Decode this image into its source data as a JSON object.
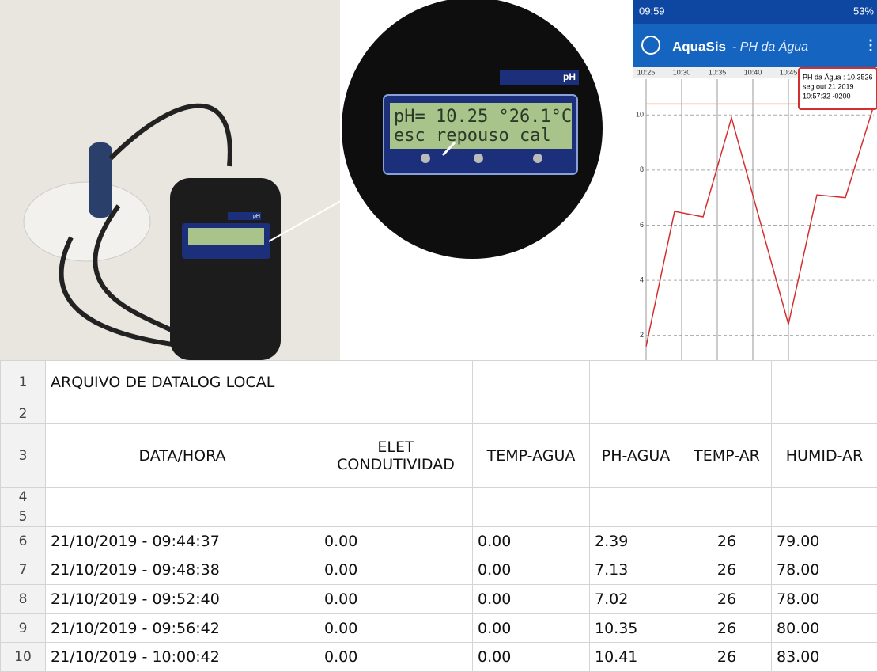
{
  "photo": {
    "device_label": "pH",
    "lcd_line1": "pH= 10.25 °26.1°C",
    "lcd_line2": "esc repouso  cal"
  },
  "phone": {
    "time": "09:59",
    "battery": "53%",
    "app_name": "AquaSis",
    "screen": "- PH da Água",
    "tooltip": [
      "PH da Água : 10.3526",
      "seg out 21 2019",
      "10:57:32 -0200"
    ]
  },
  "chart_data": {
    "type": "line",
    "x": [
      "10:25",
      "10:29",
      "10:33",
      "10:37",
      "10:45",
      "10:49",
      "10:53",
      "10:57"
    ],
    "values": [
      1.6,
      6.5,
      6.3,
      9.9,
      2.4,
      7.1,
      7.0,
      10.35
    ],
    "color": "#d32f2f",
    "xlim": [
      "10:25",
      "10:57"
    ],
    "xticks": [
      "10:25",
      "10:30",
      "10:35",
      "10:40",
      "10:45"
    ],
    "ylim": [
      1.1,
      11.3
    ],
    "yticks": [
      2,
      4,
      6,
      8,
      10
    ],
    "grid": true,
    "threshold": 10.4,
    "threshold_color": "#f4a582"
  },
  "table": {
    "row_numbers": [
      1,
      2,
      3,
      4,
      5,
      6,
      7,
      8,
      9,
      10
    ],
    "rows": [
      [
        "ARQUIVO DE DATALOG LOCAL",
        "",
        "",
        "",
        "",
        ""
      ],
      [
        "",
        "",
        "",
        "",
        "",
        ""
      ],
      [
        "DATA/HORA",
        "ELET CONDUTIVIDAD",
        "TEMP-AGUA",
        "PH-AGUA",
        "TEMP-AR",
        "HUMID-AR"
      ],
      [
        "",
        "",
        "",
        "",
        "",
        ""
      ],
      [
        "",
        "",
        "",
        "",
        "",
        ""
      ],
      [
        "21/10/2019 - 09:44:37",
        "0.00",
        "0.00",
        "2.39",
        "26",
        "79.00"
      ],
      [
        "21/10/2019 - 09:48:38",
        "0.00",
        "0.00",
        "7.13",
        "26",
        "78.00"
      ],
      [
        "21/10/2019 - 09:52:40",
        "0.00",
        "0.00",
        "7.02",
        "26",
        "78.00"
      ],
      [
        "21/10/2019 - 09:56:42",
        "0.00",
        "0.00",
        "10.35",
        "26",
        "80.00"
      ],
      [
        "21/10/2019 - 10:00:42",
        "0.00",
        "0.00",
        "10.41",
        "26",
        "83.00"
      ]
    ]
  }
}
